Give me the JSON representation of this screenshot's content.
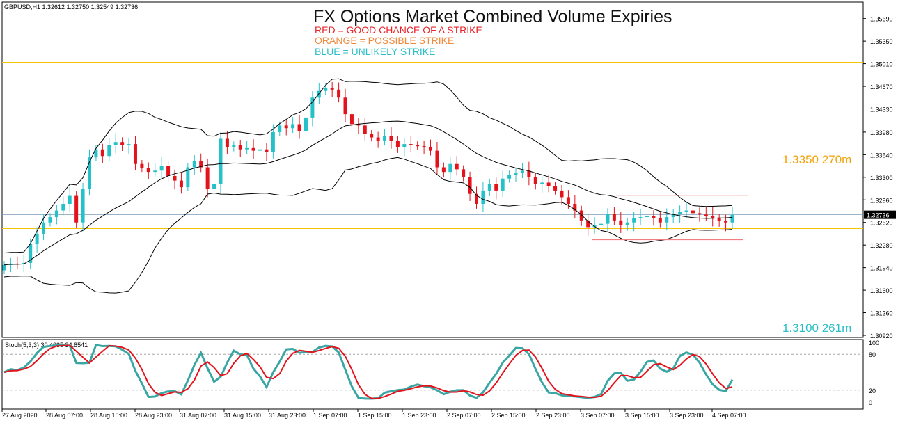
{
  "symbol_header": "GBPUSD,H1  1.32612 1.32750 1.32549 1.32736",
  "title": "FX Options Market Combined Volume Expiries",
  "legend_lines": [
    {
      "text": "RED = GOOD CHANCE OF A STRIKE",
      "color": "#e8232a"
    },
    {
      "text": "ORANGE = POSSIBLE STRIKE",
      "color": "#f08a3c"
    },
    {
      "text": "BLUE = UNLIKELY STRIKE",
      "color": "#2bbfc8"
    }
  ],
  "annotations": [
    {
      "text": "1.3350 270m",
      "color": "#f0a30a"
    },
    {
      "text": "1.3100 261m",
      "color": "#2bbfc8"
    }
  ],
  "current_price_label": "1.32736",
  "stoch_header": "Stoch(5,3,3) 30.4035 34.8541",
  "colors": {
    "bull": "#25c1c9",
    "bear": "#e3121b",
    "band": "#000000",
    "level": "#f5c400",
    "box": "#f08080",
    "stoch_main": "#3aa6a4",
    "stoch_signal": "#e3121b"
  },
  "chart_data": {
    "type": "candlestick",
    "symbol": "GBPUSD",
    "timeframe": "H1",
    "ylim": [
      1.3092,
      1.3576
    ],
    "y_ticks": [
      "1.35690",
      "1.35350",
      "1.35010",
      "1.34670",
      "1.34330",
      "1.33980",
      "1.33640",
      "1.33300",
      "1.32960",
      "1.32620",
      "1.32280",
      "1.31940",
      "1.31600",
      "1.31260",
      "1.30920"
    ],
    "x_tick_labels": [
      "27 Aug 2020",
      "28 Aug 07:00",
      "28 Aug 15:00",
      "28 Aug 23:00",
      "31 Aug 07:00",
      "31 Aug 15:00",
      "31 Aug 23:00",
      "1 Sep 07:00",
      "1 Sep 15:00",
      "1 Sep 23:00",
      "2 Sep 07:00",
      "2 Sep 15:00",
      "2 Sep 23:00",
      "3 Sep 07:00",
      "3 Sep 15:00",
      "3 Sep 23:00",
      "4 Sep 07:00"
    ],
    "horizontal_levels": [
      {
        "value": 1.3503,
        "role": "yellow line"
      },
      {
        "value": 1.32736,
        "role": "current price"
      },
      {
        "value": 1.3253,
        "role": "yellow line"
      }
    ],
    "range_box": {
      "top": 1.3303,
      "bottom": 1.3236
    },
    "close_path": [
      1.3198,
      1.32,
      1.3199,
      1.3201,
      1.323,
      1.3245,
      1.3262,
      1.327,
      1.328,
      1.329,
      1.3302,
      1.3262,
      1.3312,
      1.336,
      1.3372,
      1.3362,
      1.3378,
      1.3383,
      1.3378,
      1.338,
      1.335,
      1.3344,
      1.3338,
      1.334,
      1.3347,
      1.3332,
      1.3325,
      1.3315,
      1.3345,
      1.3355,
      1.3345,
      1.3312,
      1.332,
      1.3388,
      1.3375,
      1.3378,
      1.3372,
      1.3374,
      1.337,
      1.3372,
      1.3368,
      1.3398,
      1.3408,
      1.3404,
      1.341,
      1.34,
      1.342,
      1.345,
      1.346,
      1.3465,
      1.3462,
      1.345,
      1.3425,
      1.341,
      1.3408,
      1.3395,
      1.339,
      1.3385,
      1.3392,
      1.3385,
      1.3375,
      1.338,
      1.3378,
      1.3377,
      1.3376,
      1.337,
      1.3345,
      1.3338,
      1.335,
      1.3342,
      1.333,
      1.3305,
      1.329,
      1.331,
      1.332,
      1.331,
      1.3328,
      1.3334,
      1.3336,
      1.334,
      1.333,
      1.332,
      1.3322,
      1.3317,
      1.331,
      1.33,
      1.329,
      1.328,
      1.3265,
      1.3255,
      1.3258,
      1.326,
      1.3275,
      1.3265,
      1.3258,
      1.3262,
      1.3268,
      1.327,
      1.3272,
      1.3268,
      1.3262,
      1.327,
      1.3275,
      1.3278,
      1.328,
      1.3276,
      1.3274,
      1.3272,
      1.3268,
      1.3264,
      1.3262,
      1.32736
    ],
    "stochastic": {
      "params": "5,3,3",
      "main": 30.4035,
      "signal": 34.8541,
      "levels": [
        20,
        80
      ],
      "scale_labels": [
        "100",
        "80",
        "20",
        "0"
      ]
    }
  }
}
